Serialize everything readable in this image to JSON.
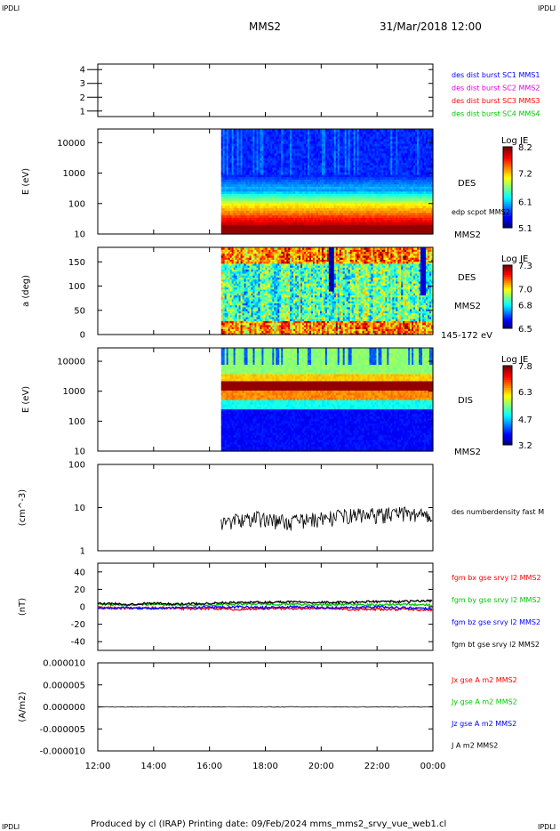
{
  "header": {
    "corner_tl": "IPDLI",
    "corner_tr": "IPDLI",
    "corner_bl": "IPDLI",
    "corner_br": "IPDLI",
    "spacecraft": "MMS2",
    "datetime": "31/Mar/2018 12:00"
  },
  "footer": "Produced by cl (IRAP)   Printing date: 09/Feb/2024   mms_mms2_srvy_vue_web1.cl",
  "colors": {
    "blue": "#0000ff",
    "magenta": "#e000e0",
    "red": "#ff0000",
    "green": "#00c800",
    "black": "#000000"
  },
  "chart_data": [
    {
      "type": "line",
      "id": "burst",
      "yticks": [
        "1",
        "2",
        "3",
        "4"
      ],
      "ylim": [
        0.6,
        4.4
      ],
      "legend": [
        {
          "label": "des dist burst SC1 MMS1",
          "color": "#0000ff"
        },
        {
          "label": "des dist burst SC2 MMS2",
          "color": "#e000e0"
        },
        {
          "label": "des dist burst SC3 MMS3",
          "color": "#ff0000"
        },
        {
          "label": "des dist burst SC4 MMS4",
          "color": "#00c800"
        }
      ]
    },
    {
      "type": "heatmap",
      "id": "des-energy",
      "ylabel": "E (eV)",
      "yscale": "log",
      "yticks": [
        "10000",
        "1000",
        "100",
        "10"
      ],
      "ylim": [
        10,
        28000
      ],
      "data_start": "16:25",
      "labels": [
        "DES",
        "edp scpot MMS2",
        "MMS2"
      ],
      "colorbar": {
        "title": "Log JE",
        "ticks": [
          "8.2",
          "7.2",
          "6.1",
          "5.1"
        ],
        "range": [
          5.1,
          8.2
        ]
      }
    },
    {
      "type": "heatmap",
      "id": "des-pitch",
      "ylabel": "a (deg)",
      "yticks": [
        "150",
        "100",
        "50",
        "0"
      ],
      "ylim": [
        0,
        180
      ],
      "data_start": "16:25",
      "labels": [
        "DES",
        "MMS2",
        "145-172 eV"
      ],
      "colorbar": {
        "title": "Log JE",
        "ticks": [
          "7.3",
          "7.0",
          "6.8",
          "6.5"
        ],
        "range": [
          6.5,
          7.3
        ]
      }
    },
    {
      "type": "heatmap",
      "id": "dis-energy",
      "ylabel": "E (eV)",
      "yscale": "log",
      "yticks": [
        "10000",
        "1000",
        "100",
        "10"
      ],
      "ylim": [
        10,
        28000
      ],
      "data_start": "16:25",
      "labels": [
        "DIS",
        "MMS2"
      ],
      "colorbar": {
        "title": "Log JE",
        "ticks": [
          "7.8",
          "6.3",
          "4.7",
          "3.2"
        ],
        "range": [
          3.2,
          7.8
        ]
      }
    },
    {
      "type": "line",
      "id": "density",
      "ylabel": "(cm^-3)",
      "yscale": "log",
      "yticks": [
        "100",
        "10",
        "1"
      ],
      "ylim": [
        1,
        100
      ],
      "series": [
        {
          "name": "des numberdensity fast M",
          "color": "#000000",
          "x": [
            "16:25",
            "17:00",
            "17:30",
            "18:00",
            "18:30",
            "19:00",
            "19:30",
            "20:00",
            "20:30",
            "21:00",
            "21:30",
            "22:00",
            "22:30",
            "23:00",
            "23:30",
            "00:00"
          ],
          "values": [
            4.5,
            5.2,
            6.0,
            5.5,
            5.0,
            4.8,
            5.3,
            5.6,
            6.2,
            6.8,
            6.9,
            7.0,
            7.2,
            7.5,
            7.0,
            7.3
          ]
        }
      ]
    },
    {
      "type": "line",
      "id": "bfield",
      "ylabel": "(nT)",
      "yticks": [
        "40",
        "20",
        "0",
        "-20",
        "-40"
      ],
      "ylim": [
        -50,
        50
      ],
      "series": [
        {
          "name": "fgm bx gse srvy l2 MMS2",
          "color": "#ff0000",
          "x": [
            "12:00",
            "13:00",
            "14:00",
            "15:00",
            "16:00",
            "17:00",
            "18:00",
            "19:00",
            "20:00",
            "21:00",
            "22:00",
            "23:00",
            "00:00"
          ],
          "values": [
            -1,
            -2,
            -1,
            -2,
            -2,
            -3,
            -2,
            -2,
            -2,
            -3,
            -3,
            -3,
            -4
          ]
        },
        {
          "name": "fgm by gse srvy l2 MMS2",
          "color": "#00c800",
          "x": [
            "12:00",
            "13:00",
            "14:00",
            "15:00",
            "16:00",
            "17:00",
            "18:00",
            "19:00",
            "20:00",
            "21:00",
            "22:00",
            "23:00",
            "00:00"
          ],
          "values": [
            3,
            2,
            3,
            2,
            2,
            3,
            3,
            3,
            2,
            3,
            2,
            3,
            2
          ]
        },
        {
          "name": "fgm bz gse srvy l2 MMS2",
          "color": "#0000ff",
          "x": [
            "12:00",
            "13:00",
            "14:00",
            "15:00",
            "16:00",
            "17:00",
            "18:00",
            "19:00",
            "20:00",
            "21:00",
            "22:00",
            "23:00",
            "00:00"
          ],
          "values": [
            -2,
            -1,
            -2,
            -1,
            -1,
            0,
            -1,
            0,
            -1,
            -1,
            0,
            -1,
            -2
          ]
        },
        {
          "name": "fgm bt gse srvy l2 MMS2",
          "color": "#000000",
          "x": [
            "12:00",
            "13:00",
            "14:00",
            "15:00",
            "16:00",
            "17:00",
            "18:00",
            "19:00",
            "20:00",
            "21:00",
            "22:00",
            "23:00",
            "00:00"
          ],
          "values": [
            4,
            3,
            4,
            3,
            4,
            5,
            5,
            6,
            5,
            5,
            6,
            6,
            7
          ]
        }
      ]
    },
    {
      "type": "line",
      "id": "current",
      "ylabel": "(A/m2)",
      "yticks": [
        "0.000010",
        "0.000005",
        "0.000000",
        "-0.000005",
        "-0.000010"
      ],
      "ylim": [
        -1e-05,
        1e-05
      ],
      "series": [
        {
          "name": "Jx gse A m2 MMS2",
          "color": "#ff0000"
        },
        {
          "name": "Jy gse A m2 MMS2",
          "color": "#00c800"
        },
        {
          "name": "Jz gse A m2 MMS2",
          "color": "#0000ff"
        },
        {
          "name": "J A m2 MMS2",
          "color": "#000000",
          "x": [
            "12:00",
            "18:00",
            "00:00"
          ],
          "values": [
            0,
            0,
            0
          ]
        }
      ]
    }
  ],
  "xaxis": {
    "ticks": [
      "12:00",
      "14:00",
      "16:00",
      "18:00",
      "20:00",
      "22:00",
      "00:00"
    ]
  }
}
